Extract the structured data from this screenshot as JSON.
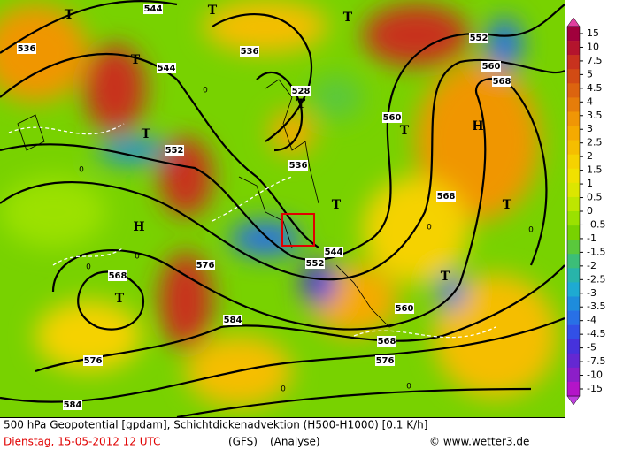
{
  "legend": {
    "labels": [
      15,
      10,
      7.5,
      5,
      4.5,
      4,
      3.5,
      3,
      2.5,
      2,
      1.5,
      1,
      0.5,
      0,
      -0.5,
      -1,
      -1.5,
      -2,
      -2.5,
      -3,
      -3.5,
      -4,
      -4.5,
      -5,
      -7.5,
      -10,
      -15
    ],
    "colors": [
      "#a0003c",
      "#b4142d",
      "#c8321e",
      "#d24b14",
      "#dc640f",
      "#e67d0a",
      "#f09605",
      "#f5aa00",
      "#f5be00",
      "#f5d200",
      "#f0e100",
      "#dce600",
      "#bee600",
      "#9be100",
      "#78d200",
      "#5ac83c",
      "#3cbe78",
      "#28b4aa",
      "#1eaad2",
      "#1e8cdc",
      "#2870e6",
      "#3250e6",
      "#4632dc",
      "#6428d2",
      "#8c1ec8",
      "#b414c8"
    ]
  },
  "map_labels": [
    "T",
    "T",
    "T",
    "T",
    "T",
    "T",
    "T",
    "T",
    "T",
    "T",
    "T",
    "H",
    "H",
    "552",
    "552",
    "552",
    "544",
    "544",
    "544",
    "536",
    "536",
    "536",
    "528",
    "560",
    "568",
    "560",
    "568",
    "576",
    "568",
    "584",
    "576",
    "584",
    "576",
    "568",
    "560",
    "0",
    "0",
    "0",
    "0",
    "0",
    "0",
    "0",
    "0"
  ],
  "footer": {
    "line1": "500 hPa Geopotential [gpdam], Schichtdickenadvektion (H500-H1000) [0.1 K/h]",
    "date": "Dienstag, 15-05-2012  12 UTC",
    "model": "(GFS)",
    "run": "(Analyse)",
    "credit": "© www.wetter3.de"
  }
}
